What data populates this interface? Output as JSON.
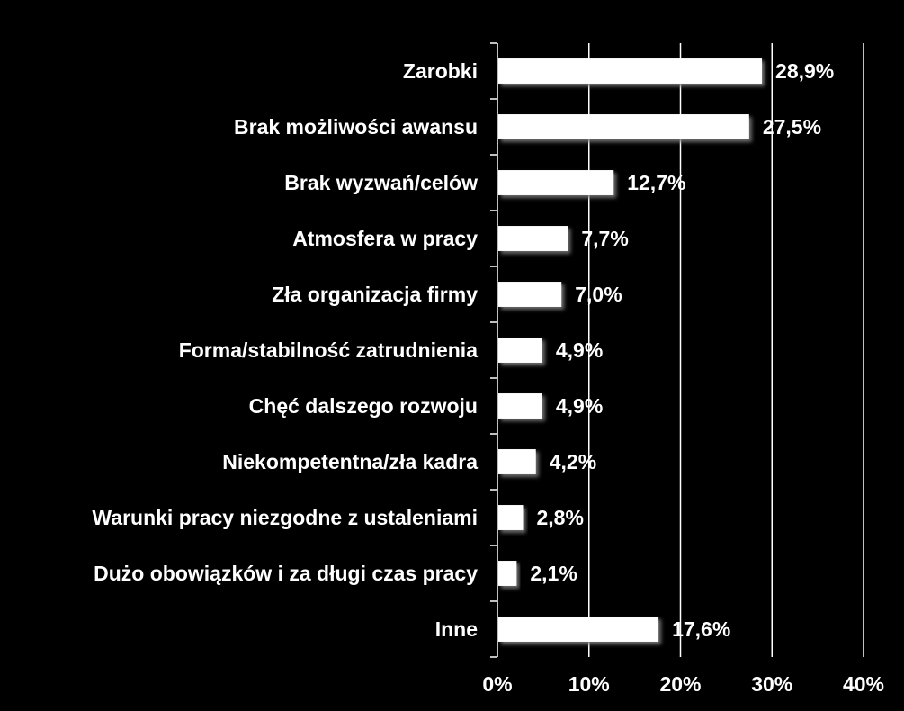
{
  "chart_data": {
    "type": "bar",
    "orientation": "horizontal",
    "categories": [
      "Zarobki",
      "Brak możliwości awansu",
      "Brak wyzwań/celów",
      "Atmosfera w pracy",
      "Zła organizacja firmy",
      "Forma/stabilność zatrudnienia",
      "Chęć dalszego rozwoju",
      "Niekompetentna/zła kadra",
      "Warunki pracy niezgodne z ustaleniami",
      "Dużo obowiązków i za długi czas pracy",
      "Inne"
    ],
    "values": [
      28.9,
      27.5,
      12.7,
      7.7,
      7.0,
      4.9,
      4.9,
      4.2,
      2.8,
      2.1,
      17.6
    ],
    "value_labels": [
      "28,9%",
      "27,5%",
      "12,7%",
      "7,7%",
      "7,0%",
      "4,9%",
      "4,9%",
      "4,2%",
      "2,8%",
      "2,1%",
      "17,6%"
    ],
    "xlim": [
      0,
      40
    ],
    "x_ticks": [
      0,
      10,
      20,
      30,
      40
    ],
    "x_tick_labels": [
      "0%",
      "10%",
      "20%",
      "30%",
      "40%"
    ],
    "title": "",
    "xlabel": "",
    "ylabel": "",
    "grid": "vertical",
    "legend": "none",
    "colors": {
      "background": "#000000",
      "bar": "#ffffff",
      "text": "#ffffff",
      "grid": "#ffffff"
    }
  }
}
